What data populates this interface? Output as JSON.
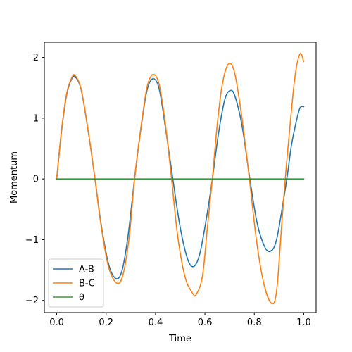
{
  "chart_data": {
    "type": "line",
    "title": "",
    "xlabel": "Time",
    "ylabel": "Momentum",
    "xlim": [
      -0.05,
      1.05
    ],
    "ylim": [
      -2.2,
      2.25
    ],
    "xticks": [
      0.0,
      0.2,
      0.4,
      0.6,
      0.8,
      1.0
    ],
    "xtick_labels": [
      "0.0",
      "0.2",
      "0.4",
      "0.6",
      "0.8",
      "1.0"
    ],
    "yticks": [
      -2,
      -1,
      0,
      1,
      2
    ],
    "ytick_labels": [
      "−2",
      "−1",
      "0",
      "1",
      "2"
    ],
    "grid": false,
    "legend_position": "lower-left",
    "series": [
      {
        "name": "A-B",
        "color": "#1f77b4",
        "points": [
          [
            0.0,
            0.0
          ],
          [
            0.02,
            0.8
          ],
          [
            0.04,
            1.38
          ],
          [
            0.06,
            1.64
          ],
          [
            0.075,
            1.68
          ],
          [
            0.1,
            1.45
          ],
          [
            0.13,
            0.72
          ],
          [
            0.155,
            0.0
          ],
          [
            0.18,
            -0.75
          ],
          [
            0.21,
            -1.4
          ],
          [
            0.24,
            -1.64
          ],
          [
            0.265,
            -1.5
          ],
          [
            0.29,
            -0.9
          ],
          [
            0.315,
            0.0
          ],
          [
            0.34,
            0.8
          ],
          [
            0.365,
            1.45
          ],
          [
            0.39,
            1.65
          ],
          [
            0.415,
            1.48
          ],
          [
            0.44,
            0.85
          ],
          [
            0.47,
            0.0
          ],
          [
            0.5,
            -0.8
          ],
          [
            0.53,
            -1.32
          ],
          [
            0.555,
            -1.44
          ],
          [
            0.58,
            -1.22
          ],
          [
            0.61,
            -0.55
          ],
          [
            0.63,
            0.0
          ],
          [
            0.655,
            0.75
          ],
          [
            0.68,
            1.3
          ],
          [
            0.7,
            1.45
          ],
          [
            0.72,
            1.38
          ],
          [
            0.75,
            0.88
          ],
          [
            0.78,
            0.05
          ],
          [
            0.81,
            -0.7
          ],
          [
            0.84,
            -1.1
          ],
          [
            0.865,
            -1.19
          ],
          [
            0.89,
            -1.0
          ],
          [
            0.92,
            -0.3
          ],
          [
            0.935,
            0.1
          ],
          [
            0.95,
            0.55
          ],
          [
            0.97,
            0.95
          ],
          [
            0.985,
            1.17
          ],
          [
            1.0,
            1.19
          ]
        ]
      },
      {
        "name": "B-C",
        "color": "#ff7f0e",
        "points": [
          [
            0.0,
            0.0
          ],
          [
            0.02,
            0.82
          ],
          [
            0.04,
            1.4
          ],
          [
            0.06,
            1.66
          ],
          [
            0.075,
            1.7
          ],
          [
            0.1,
            1.46
          ],
          [
            0.13,
            0.72
          ],
          [
            0.155,
            0.0
          ],
          [
            0.18,
            -0.78
          ],
          [
            0.21,
            -1.45
          ],
          [
            0.245,
            -1.72
          ],
          [
            0.27,
            -1.55
          ],
          [
            0.295,
            -0.9
          ],
          [
            0.315,
            0.0
          ],
          [
            0.34,
            0.82
          ],
          [
            0.365,
            1.5
          ],
          [
            0.39,
            1.72
          ],
          [
            0.415,
            1.55
          ],
          [
            0.44,
            0.9
          ],
          [
            0.465,
            0.0
          ],
          [
            0.49,
            -0.95
          ],
          [
            0.52,
            -1.62
          ],
          [
            0.55,
            -1.88
          ],
          [
            0.565,
            -1.9
          ],
          [
            0.59,
            -1.6
          ],
          [
            0.61,
            -0.8
          ],
          [
            0.63,
            0.0
          ],
          [
            0.65,
            0.9
          ],
          [
            0.67,
            1.55
          ],
          [
            0.695,
            1.89
          ],
          [
            0.72,
            1.75
          ],
          [
            0.75,
            1.0
          ],
          [
            0.78,
            0.0
          ],
          [
            0.81,
            -1.05
          ],
          [
            0.84,
            -1.75
          ],
          [
            0.87,
            -2.05
          ],
          [
            0.89,
            -1.85
          ],
          [
            0.91,
            -0.8
          ],
          [
            0.925,
            0.0
          ],
          [
            0.945,
            0.9
          ],
          [
            0.965,
            1.7
          ],
          [
            0.985,
            2.06
          ],
          [
            1.0,
            1.93
          ]
        ]
      },
      {
        "name": "θ",
        "color": "#2ca02c",
        "points": [
          [
            0.0,
            0.0
          ],
          [
            1.0,
            0.0
          ]
        ]
      }
    ]
  }
}
